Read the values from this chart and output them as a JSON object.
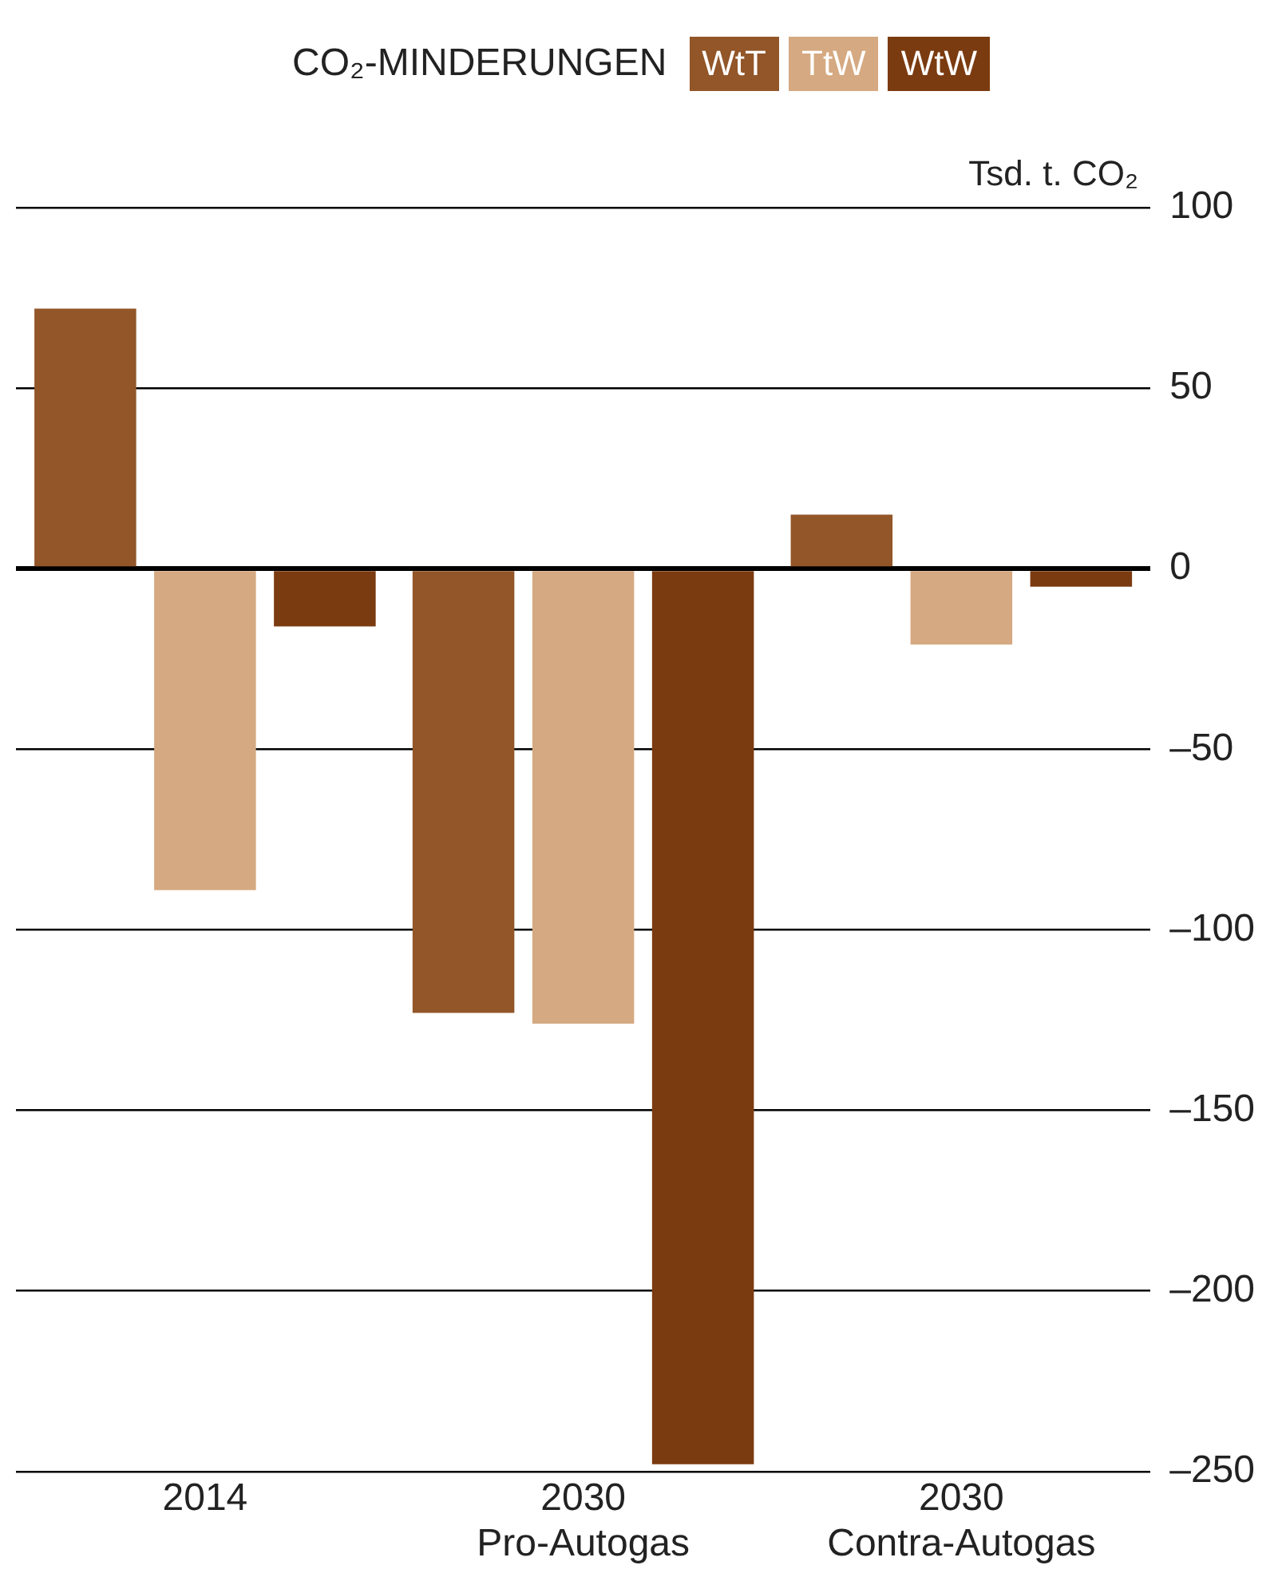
{
  "chart_data": {
    "type": "bar",
    "legend_title": "CO₂-MINDERUNGEN",
    "ylabel": "Tsd. t. CO₂",
    "categories": [
      "2014",
      "2030\nPro-Autogas",
      "2030\nContra-Autogas"
    ],
    "series": [
      {
        "name": "WtT",
        "color": "#925629",
        "values": [
          72,
          -123,
          15
        ]
      },
      {
        "name": "TtW",
        "color": "#d5a981",
        "values": [
          -89,
          -126,
          -21
        ]
      },
      {
        "name": "WtW",
        "color": "#7b3b10",
        "values": [
          -16,
          -248,
          -5
        ]
      }
    ],
    "ylim": [
      -250,
      100
    ],
    "yticks": [
      100,
      50,
      0,
      {
        "value": -50,
        "label": "–50"
      },
      {
        "value": -100,
        "label": "–100"
      },
      {
        "value": -150,
        "label": "–150"
      },
      {
        "value": -200,
        "label": "–200"
      },
      {
        "value": -250,
        "label": "–250"
      }
    ],
    "grid": "y",
    "legend": "top"
  }
}
